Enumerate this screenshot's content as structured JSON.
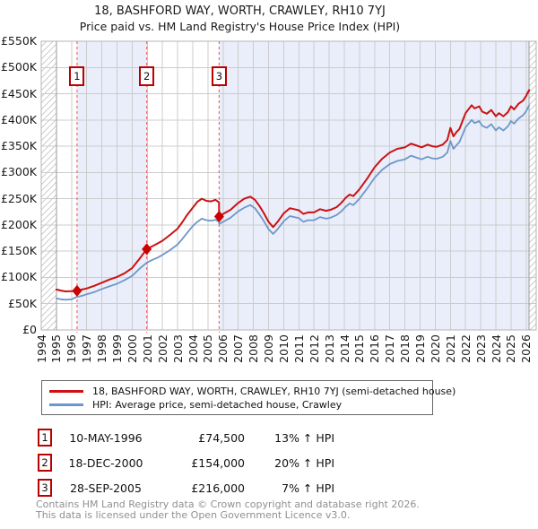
{
  "title": "18, BASHFORD WAY, WORTH, CRAWLEY, RH10 7YJ",
  "subtitle": "Price paid vs. HM Land Registry's House Price Index (HPI)",
  "chart_data": {
    "type": "line",
    "x_axis": {
      "ticks": [
        "1994",
        "1995",
        "1996",
        "1997",
        "1998",
        "1999",
        "2000",
        "2001",
        "2002",
        "2003",
        "2004",
        "2005",
        "2006",
        "2007",
        "2008",
        "2009",
        "2010",
        "2011",
        "2012",
        "2013",
        "2014",
        "2015",
        "2016",
        "2017",
        "2018",
        "2019",
        "2020",
        "2021",
        "2022",
        "2023",
        "2024",
        "2025",
        "2026"
      ],
      "min": 1994,
      "max": 2026.66
    },
    "y_axis": {
      "ticks": [
        {
          "label": "£550K",
          "value": 550
        },
        {
          "label": "£500K",
          "value": 500
        },
        {
          "label": "£450K",
          "value": 450
        },
        {
          "label": "£400K",
          "value": 400
        },
        {
          "label": "£350K",
          "value": 350
        },
        {
          "label": "£300K",
          "value": 300
        },
        {
          "label": "£250K",
          "value": 250
        },
        {
          "label": "£200K",
          "value": 200
        },
        {
          "label": "£150K",
          "value": 150
        },
        {
          "label": "£100K",
          "value": 100
        },
        {
          "label": "£50K",
          "value": 50
        },
        {
          "label": "£0",
          "value": 0
        }
      ],
      "min": 0,
      "max": 550,
      "unit": "GBP thousands"
    },
    "grid": true,
    "band_color": "#e9eefa",
    "hatch_regions": [
      {
        "from": 1994,
        "to": 1995
      },
      {
        "from": 2026.2,
        "to": 2026.66
      }
    ],
    "bands": [
      {
        "from": 1996.36,
        "to": 2000.96
      },
      {
        "from": 2005.74,
        "to": 2026.2
      }
    ],
    "markers": [
      {
        "num": "1",
        "year": 1996.36,
        "value_k": 74.5
      },
      {
        "num": "2",
        "year": 2000.96,
        "value_k": 154
      },
      {
        "num": "3",
        "year": 2005.74,
        "value_k": 216
      }
    ],
    "series": [
      {
        "name": "18, BASHFORD WAY, WORTH, CRAWLEY, RH10 7YJ (semi-detached house)",
        "color": "#cc1111",
        "points": [
          [
            1995.0,
            77
          ],
          [
            1995.3,
            75
          ],
          [
            1995.6,
            73.5
          ],
          [
            1996.0,
            73.8
          ],
          [
            1996.36,
            74.5
          ],
          [
            1996.7,
            77
          ],
          [
            1997.0,
            79
          ],
          [
            1997.5,
            84
          ],
          [
            1998.0,
            90
          ],
          [
            1998.5,
            96
          ],
          [
            1999.0,
            101
          ],
          [
            1999.5,
            108
          ],
          [
            2000.0,
            118
          ],
          [
            2000.5,
            136
          ],
          [
            2000.96,
            154
          ],
          [
            2001.3,
            159
          ],
          [
            2001.7,
            165
          ],
          [
            2002.0,
            170
          ],
          [
            2002.5,
            181
          ],
          [
            2003.0,
            193
          ],
          [
            2003.3,
            205
          ],
          [
            2003.6,
            218
          ],
          [
            2004.0,
            233
          ],
          [
            2004.3,
            244
          ],
          [
            2004.6,
            250
          ],
          [
            2004.9,
            246
          ],
          [
            2005.2,
            245
          ],
          [
            2005.5,
            248
          ],
          [
            2005.73,
            243
          ],
          [
            2005.74,
            216
          ],
          [
            2006.0,
            221
          ],
          [
            2006.5,
            229
          ],
          [
            2007.0,
            242
          ],
          [
            2007.4,
            250
          ],
          [
            2007.8,
            254
          ],
          [
            2008.1,
            248
          ],
          [
            2008.4,
            236
          ],
          [
            2008.7,
            222
          ],
          [
            2009.0,
            206
          ],
          [
            2009.3,
            196
          ],
          [
            2009.6,
            206
          ],
          [
            2010.0,
            222
          ],
          [
            2010.4,
            232
          ],
          [
            2010.7,
            230
          ],
          [
            2011.0,
            228
          ],
          [
            2011.3,
            221
          ],
          [
            2011.6,
            224
          ],
          [
            2012.0,
            224
          ],
          [
            2012.4,
            230
          ],
          [
            2012.8,
            227
          ],
          [
            2013.1,
            229
          ],
          [
            2013.5,
            234
          ],
          [
            2013.8,
            242
          ],
          [
            2014.1,
            252
          ],
          [
            2014.35,
            258
          ],
          [
            2014.6,
            255
          ],
          [
            2015.0,
            268
          ],
          [
            2015.5,
            288
          ],
          [
            2016.0,
            310
          ],
          [
            2016.5,
            326
          ],
          [
            2017.0,
            338
          ],
          [
            2017.5,
            345
          ],
          [
            2018.0,
            348
          ],
          [
            2018.4,
            355
          ],
          [
            2018.8,
            351
          ],
          [
            2019.1,
            348
          ],
          [
            2019.5,
            353
          ],
          [
            2019.8,
            350
          ],
          [
            2020.1,
            349
          ],
          [
            2020.5,
            353
          ],
          [
            2020.8,
            362
          ],
          [
            2021.0,
            385
          ],
          [
            2021.2,
            369
          ],
          [
            2021.4,
            377
          ],
          [
            2021.6,
            383
          ],
          [
            2022.0,
            413
          ],
          [
            2022.4,
            428
          ],
          [
            2022.6,
            422
          ],
          [
            2022.9,
            426
          ],
          [
            2023.1,
            416
          ],
          [
            2023.4,
            412
          ],
          [
            2023.7,
            419
          ],
          [
            2024.0,
            407
          ],
          [
            2024.2,
            413
          ],
          [
            2024.5,
            407
          ],
          [
            2024.8,
            415
          ],
          [
            2025.0,
            426
          ],
          [
            2025.2,
            420
          ],
          [
            2025.5,
            431
          ],
          [
            2025.8,
            437
          ],
          [
            2026.0,
            446
          ],
          [
            2026.2,
            457
          ]
        ]
      },
      {
        "name": "HPI: Average price, semi-detached house, Crawley",
        "color": "#6d97c9",
        "points": [
          [
            1995.0,
            60
          ],
          [
            1995.3,
            58.5
          ],
          [
            1995.6,
            57.5
          ],
          [
            1996.0,
            58.5
          ],
          [
            1996.36,
            63
          ],
          [
            1996.7,
            65
          ],
          [
            1997.0,
            68
          ],
          [
            1997.5,
            72
          ],
          [
            1998.0,
            78
          ],
          [
            1998.5,
            83
          ],
          [
            1999.0,
            88
          ],
          [
            1999.5,
            95
          ],
          [
            2000.0,
            103
          ],
          [
            2000.5,
            117
          ],
          [
            2000.96,
            128
          ],
          [
            2001.3,
            133
          ],
          [
            2001.7,
            138
          ],
          [
            2002.0,
            143
          ],
          [
            2002.5,
            152
          ],
          [
            2003.0,
            163
          ],
          [
            2003.3,
            173
          ],
          [
            2003.6,
            184
          ],
          [
            2004.0,
            198
          ],
          [
            2004.3,
            206
          ],
          [
            2004.6,
            212
          ],
          [
            2004.9,
            209
          ],
          [
            2005.2,
            208
          ],
          [
            2005.5,
            210
          ],
          [
            2005.73,
            206
          ],
          [
            2005.74,
            202
          ],
          [
            2006.0,
            206
          ],
          [
            2006.5,
            214
          ],
          [
            2007.0,
            226
          ],
          [
            2007.4,
            233
          ],
          [
            2007.8,
            238
          ],
          [
            2008.1,
            232
          ],
          [
            2008.4,
            220
          ],
          [
            2008.7,
            207
          ],
          [
            2009.0,
            192
          ],
          [
            2009.3,
            183
          ],
          [
            2009.6,
            192
          ],
          [
            2010.0,
            207
          ],
          [
            2010.4,
            217
          ],
          [
            2010.7,
            215
          ],
          [
            2011.0,
            213
          ],
          [
            2011.3,
            206
          ],
          [
            2011.6,
            209
          ],
          [
            2012.0,
            209
          ],
          [
            2012.4,
            215
          ],
          [
            2012.8,
            212
          ],
          [
            2013.1,
            214
          ],
          [
            2013.5,
            219
          ],
          [
            2013.8,
            226
          ],
          [
            2014.1,
            235
          ],
          [
            2014.35,
            241
          ],
          [
            2014.6,
            238
          ],
          [
            2015.0,
            250
          ],
          [
            2015.5,
            269
          ],
          [
            2016.0,
            290
          ],
          [
            2016.5,
            305
          ],
          [
            2017.0,
            316
          ],
          [
            2017.5,
            322
          ],
          [
            2018.0,
            325
          ],
          [
            2018.4,
            332
          ],
          [
            2018.8,
            328
          ],
          [
            2019.1,
            325
          ],
          [
            2019.5,
            330
          ],
          [
            2019.8,
            327
          ],
          [
            2020.1,
            326
          ],
          [
            2020.5,
            330
          ],
          [
            2020.8,
            338
          ],
          [
            2021.0,
            360
          ],
          [
            2021.2,
            345
          ],
          [
            2021.4,
            352
          ],
          [
            2021.6,
            358
          ],
          [
            2022.0,
            386
          ],
          [
            2022.4,
            400
          ],
          [
            2022.6,
            394
          ],
          [
            2022.9,
            398
          ],
          [
            2023.1,
            389
          ],
          [
            2023.4,
            385
          ],
          [
            2023.7,
            392
          ],
          [
            2024.0,
            380
          ],
          [
            2024.2,
            386
          ],
          [
            2024.5,
            380
          ],
          [
            2024.8,
            388
          ],
          [
            2025.0,
            398
          ],
          [
            2025.2,
            393
          ],
          [
            2025.5,
            403
          ],
          [
            2025.8,
            409
          ],
          [
            2026.0,
            417
          ],
          [
            2026.2,
            428
          ]
        ]
      }
    ]
  },
  "legend": {
    "items": [
      {
        "label": "18, BASHFORD WAY, WORTH, CRAWLEY, RH10 7YJ (semi-detached house)",
        "color": "#cc1111"
      },
      {
        "label": "HPI: Average price, semi-detached house, Crawley",
        "color": "#6d97c9"
      }
    ]
  },
  "transactions": [
    {
      "num": "1",
      "date": "10-MAY-1996",
      "price": "£74,500",
      "hpi_diff": "13% ↑ HPI"
    },
    {
      "num": "2",
      "date": "18-DEC-2000",
      "price": "£154,000",
      "hpi_diff": "20% ↑ HPI"
    },
    {
      "num": "3",
      "date": "28-SEP-2005",
      "price": "£216,000",
      "hpi_diff": "7% ↑ HPI"
    }
  ],
  "footer": {
    "line1": "Contains HM Land Registry data © Crown copyright and database right 2026.",
    "line2": "This data is licensed under the Open Government Licence v3.0."
  }
}
